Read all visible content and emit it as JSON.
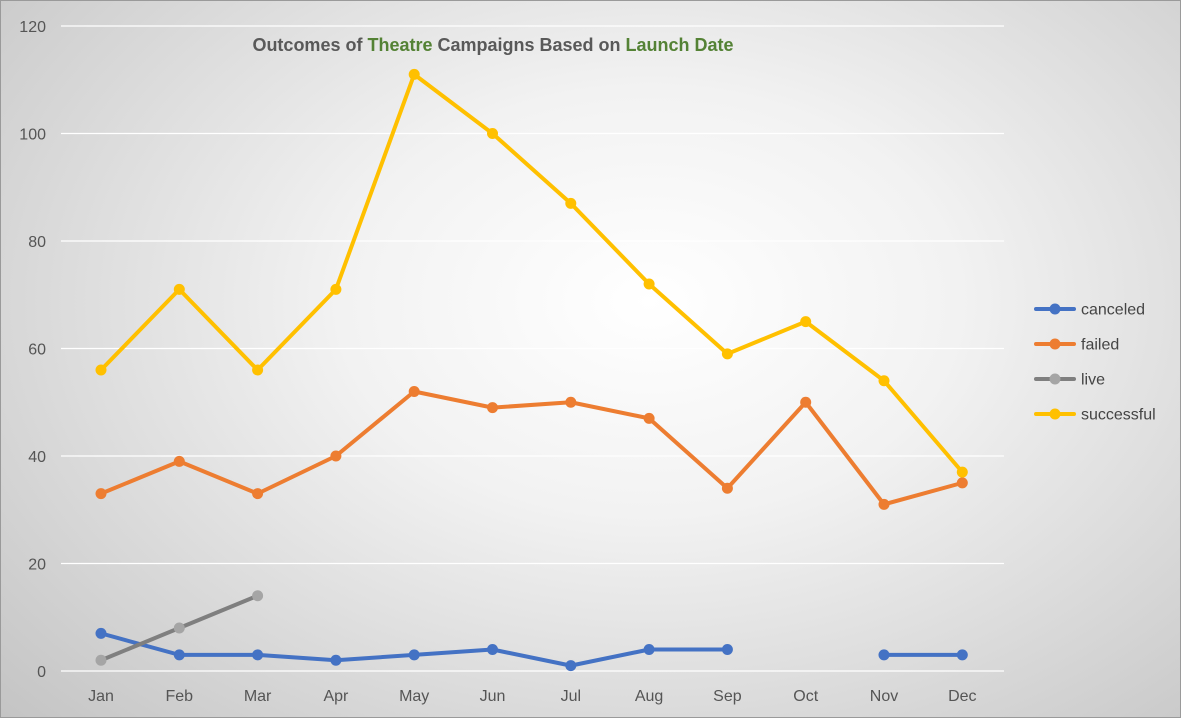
{
  "chart_data": {
    "type": "line",
    "title_parts": [
      {
        "text": "Outcomes of ",
        "color": "#595959"
      },
      {
        "text": "Theatre",
        "color": "#548235"
      },
      {
        "text": " Campaigns Based on ",
        "color": "#595959"
      },
      {
        "text": "Launch Date",
        "color": "#548235"
      }
    ],
    "categories": [
      "Jan",
      "Feb",
      "Mar",
      "Apr",
      "May",
      "Jun",
      "Jul",
      "Aug",
      "Sep",
      "Oct",
      "Nov",
      "Dec"
    ],
    "ylim": [
      0,
      120
    ],
    "yticks": [
      0,
      20,
      40,
      60,
      80,
      100,
      120
    ],
    "grid": true,
    "legend_position": "right",
    "series": [
      {
        "name": "canceled",
        "color": "#4472C4",
        "values": [
          7,
          3,
          3,
          2,
          3,
          4,
          1,
          4,
          4,
          null,
          3,
          3
        ]
      },
      {
        "name": "failed",
        "color": "#ED7D31",
        "values": [
          33,
          39,
          33,
          40,
          52,
          49,
          50,
          47,
          34,
          50,
          31,
          35
        ]
      },
      {
        "name": "live",
        "color": "#7F7F7F",
        "marker_color": "#A5A5A5",
        "values": [
          2,
          8,
          14,
          null,
          null,
          null,
          null,
          null,
          null,
          null,
          null,
          null
        ]
      },
      {
        "name": "successful",
        "color": "#FFC000",
        "values": [
          56,
          71,
          56,
          71,
          111,
          100,
          87,
          72,
          59,
          65,
          54,
          37
        ]
      }
    ]
  }
}
